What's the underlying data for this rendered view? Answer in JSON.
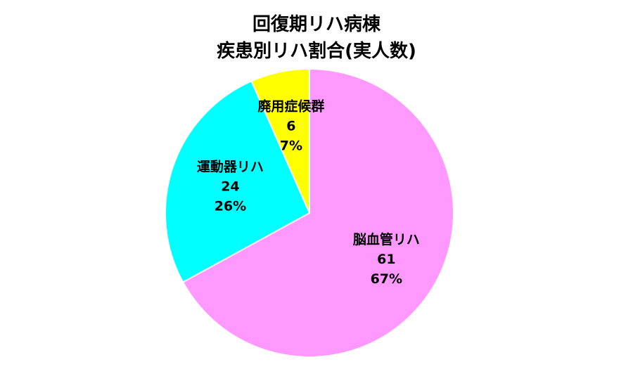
{
  "chart_data": {
    "type": "pie",
    "title_lines": [
      "回復期リハ病棟",
      "疾患別リハ割合(実人数)"
    ],
    "slices": [
      {
        "name": "脳血管リハ",
        "value": 61,
        "percent": "67%",
        "color": "#FF99FF"
      },
      {
        "name": "運動器リハ",
        "value": 24,
        "percent": "26%",
        "color": "#00FFFF"
      },
      {
        "name": "廃用症候群",
        "value": 6,
        "percent": "7%",
        "color": "#FFFF00"
      }
    ],
    "legend": "none"
  }
}
